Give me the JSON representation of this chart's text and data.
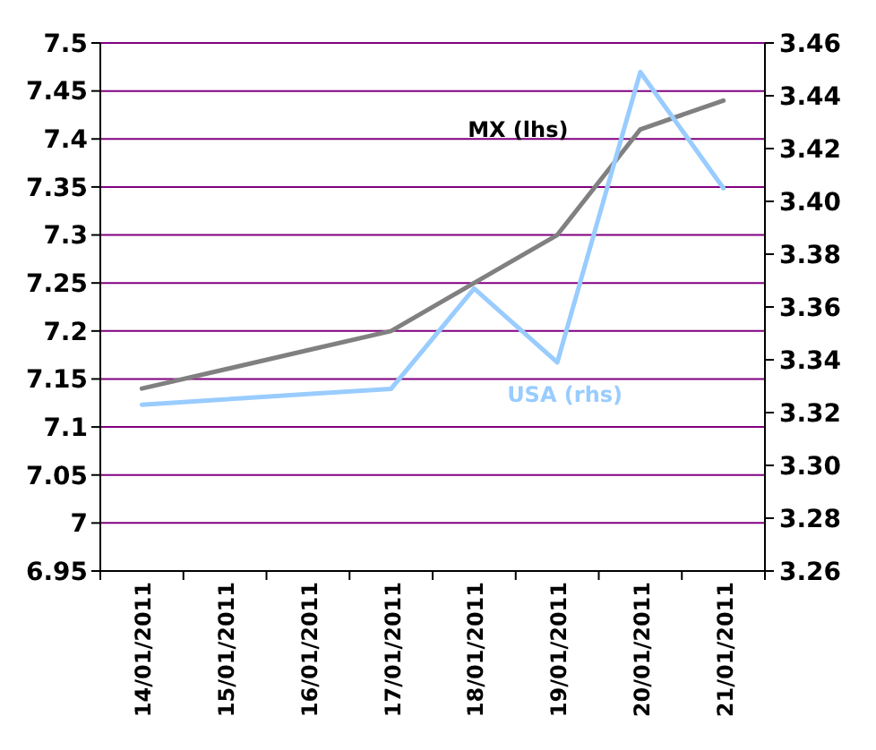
{
  "chart_data": {
    "type": "line",
    "categories": [
      "14/01/2011",
      "15/01/2011",
      "16/01/2011",
      "17/01/2011",
      "18/01/2011",
      "19/01/2011",
      "20/01/2011",
      "21/01/2011"
    ],
    "series": [
      {
        "name": "MX (lhs)",
        "color": "#808080",
        "values": [
          7.14,
          7.16,
          7.18,
          7.2,
          7.25,
          7.3,
          7.41,
          7.44
        ]
      },
      {
        "name": "USA (rhs)",
        "color": "#99ccff",
        "axis": "y2",
        "values": [
          3.323,
          3.325,
          3.327,
          3.329,
          3.367,
          3.339,
          3.449,
          3.405
        ]
      }
    ],
    "ylim": [
      6.95,
      7.5
    ],
    "yticks": [
      6.95,
      7,
      7.05,
      7.1,
      7.15,
      7.2,
      7.25,
      7.3,
      7.35,
      7.4,
      7.45,
      7.5
    ],
    "y2lim": [
      3.26,
      3.46
    ],
    "y2ticks": [
      {
        "value": 3.26,
        "label": "3.26"
      },
      {
        "value": 3.28,
        "label": "3.28"
      },
      {
        "value": 3.3,
        "label": "3.30"
      },
      {
        "value": 3.32,
        "label": "3.32"
      },
      {
        "value": 3.34,
        "label": "3.34"
      },
      {
        "value": 3.36,
        "label": "3.36"
      },
      {
        "value": 3.38,
        "label": "3.38"
      },
      {
        "value": 3.4,
        "label": "3.40"
      },
      {
        "value": 3.42,
        "label": "3.42"
      },
      {
        "value": 3.44,
        "label": "3.44"
      },
      {
        "value": 3.46,
        "label": "3.46"
      }
    ],
    "grid": "y",
    "marker": "none",
    "line_style": "solid"
  }
}
